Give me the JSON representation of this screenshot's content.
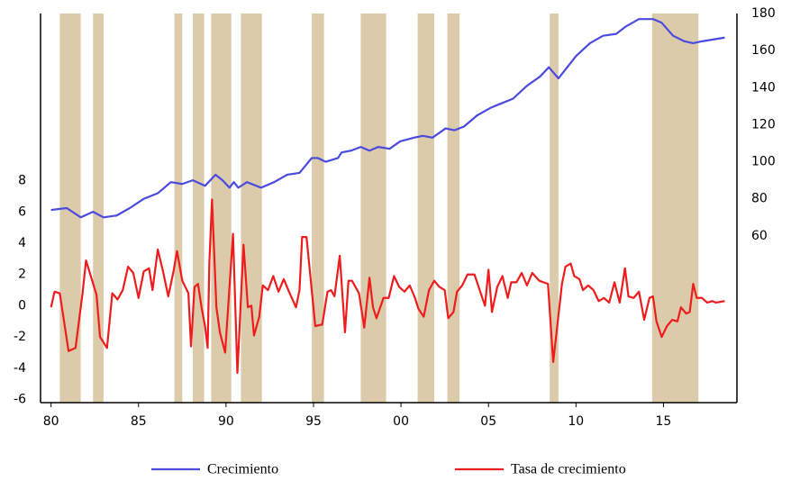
{
  "chart_data": {
    "type": "line",
    "xlim": [
      1979.4,
      2019.2
    ],
    "xticks": [
      {
        "value": 1980,
        "label": "80"
      },
      {
        "value": 1985,
        "label": "85"
      },
      {
        "value": 1990,
        "label": "90"
      },
      {
        "value": 1995,
        "label": "95"
      },
      {
        "value": 2000,
        "label": "00"
      },
      {
        "value": 2005,
        "label": "05"
      },
      {
        "value": 2010,
        "label": "10"
      },
      {
        "value": 2015,
        "label": "15"
      }
    ],
    "ylim": [
      -6.2,
      18.7
    ],
    "yticks": [
      -6,
      -4,
      -2,
      0,
      2,
      4,
      6,
      8
    ],
    "y2lim": [
      -30,
      180
    ],
    "y2ticks": [
      60,
      80,
      100,
      120,
      140,
      160,
      180
    ],
    "shade_color": "#dccbab",
    "shaded_periods": [
      [
        1980.5,
        1981.7
      ],
      [
        1982.4,
        1983.0
      ],
      [
        1987.05,
        1987.5
      ],
      [
        1988.1,
        1988.75
      ],
      [
        1989.15,
        1990.3
      ],
      [
        1990.85,
        1992.05
      ],
      [
        1994.9,
        1995.6
      ],
      [
        1997.7,
        1999.15
      ],
      [
        2000.95,
        2001.9
      ],
      [
        2002.65,
        2003.35
      ],
      [
        2008.5,
        2009.0
      ],
      [
        2014.35,
        2017.0
      ]
    ],
    "series": [
      {
        "name": "Crecimiento",
        "color": "#4a4ae0",
        "axis": "y2",
        "x": [
          1980,
          1980.9,
          1981.7,
          1982.4,
          1983.0,
          1983.75,
          1984.5,
          1985.3,
          1986.1,
          1986.85,
          1987.5,
          1988.1,
          1988.8,
          1989.4,
          1989.8,
          1990.2,
          1990.45,
          1990.7,
          1991.2,
          1992.0,
          1992.75,
          1993.5,
          1994.2,
          1994.9,
          1995.25,
          1995.7,
          1996.4,
          1996.6,
          1997.15,
          1997.7,
          1998.2,
          1998.7,
          1999.35,
          1999.95,
          2000.75,
          2001.25,
          2001.8,
          2002.55,
          2003.05,
          2003.6,
          2004.35,
          2005.1,
          2005.6,
          2006.4,
          2007.2,
          2007.95,
          2008.45,
          2009.0,
          2009.5,
          2010.0,
          2010.8,
          2011.55,
          2012.3,
          2012.85,
          2013.6,
          2014.4,
          2014.9,
          2015.55,
          2016.2,
          2016.7,
          2017.2,
          2018.5
        ],
        "values": [
          74,
          75,
          70,
          73,
          70,
          71,
          75,
          80,
          83,
          89,
          88,
          90,
          87,
          93,
          90,
          86,
          89,
          86,
          89,
          86,
          89,
          93,
          94,
          102,
          102,
          100,
          102,
          105,
          106,
          108,
          106,
          108,
          107,
          111,
          113,
          114,
          113,
          118,
          117,
          119,
          125,
          129,
          131,
          134,
          141,
          146,
          151,
          145,
          151,
          157,
          164,
          168,
          169,
          173,
          177,
          177,
          175,
          168,
          165,
          164,
          165,
          167
        ]
      },
      {
        "name": "Tasa de crecimiento",
        "color": "#ee1c1c",
        "axis": "y",
        "x": [
          1980.0,
          1980.2,
          1980.5,
          1981.0,
          1981.4,
          1981.8,
          1982.0,
          1982.6,
          1982.8,
          1983.2,
          1983.5,
          1983.8,
          1984.1,
          1984.4,
          1984.7,
          1985.0,
          1985.3,
          1985.6,
          1985.8,
          1986.1,
          1986.4,
          1986.7,
          1987.0,
          1987.2,
          1987.5,
          1987.85,
          1988.0,
          1988.2,
          1988.4,
          1988.6,
          1988.8,
          1988.95,
          1989.05,
          1989.2,
          1989.45,
          1989.65,
          1989.95,
          1990.4,
          1990.65,
          1991.0,
          1991.25,
          1991.45,
          1991.6,
          1991.9,
          1992.1,
          1992.4,
          1992.7,
          1993.0,
          1993.3,
          1993.6,
          1994.0,
          1994.2,
          1994.35,
          1994.6,
          1994.9,
          1995.1,
          1995.5,
          1995.8,
          1996.0,
          1996.2,
          1996.5,
          1996.8,
          1997.0,
          1997.2,
          1997.6,
          1997.9,
          1998.2,
          1998.4,
          1998.6,
          1999.0,
          1999.3,
          1999.6,
          1999.9,
          2000.2,
          2000.5,
          2000.8,
          2001.0,
          2001.3,
          2001.6,
          2001.9,
          2002.2,
          2002.5,
          2002.7,
          2003.0,
          2003.2,
          2003.5,
          2003.8,
          2004.2,
          2004.5,
          2004.8,
          2005.0,
          2005.2,
          2005.5,
          2005.8,
          2006.1,
          2006.3,
          2006.6,
          2006.9,
          2007.2,
          2007.5,
          2007.9,
          2008.4,
          2008.7,
          2008.9,
          2009.2,
          2009.4,
          2009.7,
          2009.9,
          2010.2,
          2010.4,
          2010.7,
          2011.0,
          2011.3,
          2011.6,
          2011.9,
          2012.2,
          2012.5,
          2012.8,
          2013.0,
          2013.3,
          2013.6,
          2013.9,
          2014.2,
          2014.4,
          2014.6,
          2014.9,
          2015.2,
          2015.5,
          2015.8,
          2016.0,
          2016.3,
          2016.5,
          2016.7,
          2016.9,
          2017.2,
          2017.5,
          2017.8,
          2018.0,
          2018.5
        ],
        "values": [
          -0.1,
          0.9,
          0.8,
          -2.9,
          -2.7,
          0.8,
          2.9,
          0.7,
          -2,
          -2.7,
          0.8,
          0.4,
          1.0,
          2.5,
          2.1,
          0.5,
          2.2,
          2.4,
          1.0,
          3.6,
          2.2,
          0.6,
          2.2,
          3.5,
          1.6,
          0.8,
          -2.6,
          1.2,
          1.4,
          -0.1,
          -1.3,
          -2.7,
          2.8,
          6.8,
          -0.1,
          -1.7,
          -3.0,
          4.6,
          -4.3,
          3.9,
          -0.1,
          0,
          -1.9,
          -0.7,
          1.3,
          1.0,
          1.9,
          0.9,
          1.7,
          0.9,
          -0.1,
          1.0,
          4.4,
          4.4,
          1.0,
          -1.3,
          -1.2,
          0.9,
          1.0,
          0.6,
          3.2,
          -1.7,
          1.6,
          1.6,
          0.8,
          -1.4,
          1.8,
          -0.1,
          -0.8,
          0.5,
          0.5,
          1.9,
          1.2,
          0.9,
          1.3,
          0.5,
          -0.2,
          -0.7,
          1.0,
          1.6,
          1.2,
          1.0,
          -0.8,
          -0.4,
          0.9,
          1.3,
          2.0,
          2.0,
          1.0,
          0,
          2.3,
          -0.4,
          1.2,
          1.9,
          0.5,
          1.5,
          1.5,
          2.1,
          1.3,
          2.1,
          1.6,
          1.4,
          -3.6,
          -1.6,
          1.4,
          2.5,
          2.7,
          1.9,
          1.7,
          1.0,
          1.3,
          1.0,
          0.3,
          0.5,
          0.2,
          1.5,
          0.2,
          2.4,
          0.6,
          0.5,
          0.9,
          -0.9,
          0.5,
          0.6,
          -1.0,
          -2.0,
          -1.3,
          -0.9,
          -1.0,
          -0.1,
          -0.5,
          -0.4,
          1.4,
          0.5,
          0.5,
          0.2,
          0.3,
          0.2,
          0.3
        ]
      }
    ]
  }
}
